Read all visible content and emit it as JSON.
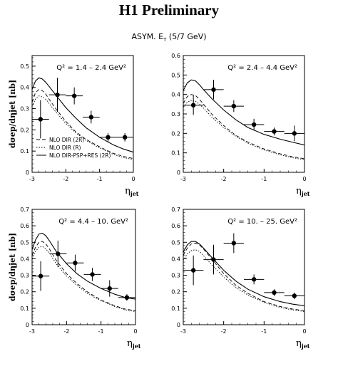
{
  "header": {
    "title": "H1 Preliminary",
    "subtitle_main": "ASYM. E",
    "subtitle_sub": "T",
    "subtitle_rest": " (5/7 GeV)"
  },
  "chart_data": [
    {
      "type": "scatter",
      "panel_label": "Q² = 1.4 – 2.4 GeV²",
      "ylabel": "dσep/dηjet [nb]",
      "xlabel": "ηjet",
      "xlim": [
        -3,
        0
      ],
      "ylim": [
        0,
        0.55
      ],
      "x_ticks": [
        -3,
        -2,
        -1,
        0
      ],
      "y_ticks": [
        0,
        0.1,
        0.2,
        0.3,
        0.4,
        0.5
      ],
      "points": [
        {
          "x": -2.75,
          "y": 0.25,
          "xerr": 0.25,
          "yerr": 0.09
        },
        {
          "x": -2.25,
          "y": 0.365,
          "xerr": 0.25,
          "yerr": 0.08
        },
        {
          "x": -1.75,
          "y": 0.36,
          "xerr": 0.25,
          "yerr": 0.04
        },
        {
          "x": -1.25,
          "y": 0.26,
          "xerr": 0.25,
          "yerr": 0.03
        },
        {
          "x": -0.75,
          "y": 0.165,
          "xerr": 0.25,
          "yerr": 0.02
        },
        {
          "x": -0.25,
          "y": 0.165,
          "xerr": 0.25,
          "yerr": 0.02
        }
      ],
      "series": [
        {
          "name": "NLO DIR (2R)",
          "style": "dashed",
          "x": [
            -3,
            -2.9,
            -2.8,
            -2.7,
            -2.6,
            -2.5,
            -2.3,
            -2.0,
            -1.7,
            -1.4,
            -1.0,
            -0.6,
            -0.3,
            0
          ],
          "y": [
            0.33,
            0.375,
            0.39,
            0.385,
            0.37,
            0.345,
            0.3,
            0.24,
            0.19,
            0.155,
            0.12,
            0.09,
            0.075,
            0.065
          ]
        },
        {
          "name": "NLO DIR (R)",
          "style": "dotted",
          "x": [
            -3,
            -2.9,
            -2.8,
            -2.7,
            -2.6,
            -2.5,
            -2.3,
            -2.0,
            -1.7,
            -1.4,
            -1.0,
            -0.6,
            -0.3,
            0
          ],
          "y": [
            0.31,
            0.345,
            0.36,
            0.355,
            0.345,
            0.325,
            0.285,
            0.23,
            0.185,
            0.15,
            0.115,
            0.085,
            0.07,
            0.06
          ]
        },
        {
          "name": "NLO DIR-PSP+RES (2R)",
          "style": "solid",
          "x": [
            -3,
            -2.9,
            -2.8,
            -2.7,
            -2.6,
            -2.5,
            -2.3,
            -2.0,
            -1.7,
            -1.4,
            -1.0,
            -0.6,
            -0.3,
            0
          ],
          "y": [
            0.39,
            0.43,
            0.445,
            0.44,
            0.425,
            0.405,
            0.365,
            0.305,
            0.255,
            0.21,
            0.165,
            0.13,
            0.11,
            0.095
          ]
        }
      ],
      "legend": "bottom-left"
    },
    {
      "type": "scatter",
      "panel_label": "Q² = 2.4 – 4.4 GeV²",
      "xlabel": "ηjet",
      "xlim": [
        -3,
        0
      ],
      "ylim": [
        0,
        0.6
      ],
      "x_ticks": [
        -3,
        -2,
        -1,
        0
      ],
      "y_ticks": [
        0,
        0.1,
        0.2,
        0.3,
        0.4,
        0.5,
        0.6
      ],
      "points": [
        {
          "x": -2.75,
          "y": 0.345,
          "xerr": 0.25,
          "yerr": 0.05
        },
        {
          "x": -2.25,
          "y": 0.425,
          "xerr": 0.25,
          "yerr": 0.05
        },
        {
          "x": -1.75,
          "y": 0.34,
          "xerr": 0.25,
          "yerr": 0.03
        },
        {
          "x": -1.25,
          "y": 0.245,
          "xerr": 0.25,
          "yerr": 0.03
        },
        {
          "x": -0.75,
          "y": 0.21,
          "xerr": 0.25,
          "yerr": 0.02
        },
        {
          "x": -0.25,
          "y": 0.2,
          "xerr": 0.25,
          "yerr": 0.04
        }
      ],
      "series": [
        {
          "name": "NLO DIR (2R)",
          "style": "dashed",
          "x": [
            -3,
            -2.9,
            -2.8,
            -2.7,
            -2.6,
            -2.5,
            -2.3,
            -2.0,
            -1.7,
            -1.4,
            -1.0,
            -0.6,
            -0.3,
            0
          ],
          "y": [
            0.355,
            0.39,
            0.4,
            0.395,
            0.375,
            0.35,
            0.3,
            0.24,
            0.19,
            0.155,
            0.12,
            0.095,
            0.08,
            0.07
          ]
        },
        {
          "name": "NLO DIR (R)",
          "style": "dotted",
          "x": [
            -3,
            -2.9,
            -2.8,
            -2.7,
            -2.6,
            -2.5,
            -2.3,
            -2.0,
            -1.7,
            -1.4,
            -1.0,
            -0.6,
            -0.3,
            0
          ],
          "y": [
            0.335,
            0.36,
            0.37,
            0.365,
            0.35,
            0.33,
            0.285,
            0.23,
            0.185,
            0.15,
            0.115,
            0.09,
            0.075,
            0.065
          ]
        },
        {
          "name": "NLO DIR-PSP+RES (2R)",
          "style": "solid",
          "x": [
            -3,
            -2.9,
            -2.8,
            -2.7,
            -2.6,
            -2.5,
            -2.3,
            -2.0,
            -1.7,
            -1.4,
            -1.0,
            -0.6,
            -0.3,
            0
          ],
          "y": [
            0.42,
            0.46,
            0.475,
            0.47,
            0.45,
            0.425,
            0.38,
            0.32,
            0.27,
            0.23,
            0.195,
            0.17,
            0.155,
            0.14
          ]
        }
      ]
    },
    {
      "type": "scatter",
      "panel_label": "Q² = 4.4 – 10. GeV²",
      "ylabel": "dσep/dηjet [nb]",
      "xlabel": "ηjet",
      "xlim": [
        -3,
        0
      ],
      "ylim": [
        0,
        0.7
      ],
      "x_ticks": [
        -3,
        -2,
        -1,
        0
      ],
      "y_ticks": [
        0,
        0.1,
        0.2,
        0.3,
        0.4,
        0.5,
        0.6,
        0.7
      ],
      "points": [
        {
          "x": -2.75,
          "y": 0.295,
          "xerr": 0.25,
          "yerr": 0.09
        },
        {
          "x": -2.25,
          "y": 0.43,
          "xerr": 0.25,
          "yerr": 0.08
        },
        {
          "x": -1.75,
          "y": 0.375,
          "xerr": 0.25,
          "yerr": 0.05
        },
        {
          "x": -1.25,
          "y": 0.305,
          "xerr": 0.25,
          "yerr": 0.04
        },
        {
          "x": -0.75,
          "y": 0.22,
          "xerr": 0.25,
          "yerr": 0.05
        },
        {
          "x": -0.25,
          "y": 0.165,
          "xerr": 0.25,
          "yerr": 0.02
        }
      ],
      "series": [
        {
          "name": "NLO DIR (2R)",
          "style": "dashed",
          "x": [
            -3,
            -2.9,
            -2.8,
            -2.7,
            -2.6,
            -2.5,
            -2.3,
            -2.0,
            -1.7,
            -1.4,
            -1.0,
            -0.6,
            -0.3,
            0
          ],
          "y": [
            0.42,
            0.47,
            0.5,
            0.505,
            0.49,
            0.46,
            0.39,
            0.31,
            0.25,
            0.2,
            0.15,
            0.115,
            0.095,
            0.085
          ]
        },
        {
          "name": "NLO DIR (R)",
          "style": "dotted",
          "x": [
            -3,
            -2.9,
            -2.8,
            -2.7,
            -2.6,
            -2.5,
            -2.3,
            -2.0,
            -1.7,
            -1.4,
            -1.0,
            -0.6,
            -0.3,
            0
          ],
          "y": [
            0.4,
            0.445,
            0.47,
            0.475,
            0.46,
            0.435,
            0.37,
            0.295,
            0.24,
            0.19,
            0.145,
            0.11,
            0.09,
            0.08
          ]
        },
        {
          "name": "NLO DIR-PSP+RES (2R)",
          "style": "solid",
          "x": [
            -3,
            -2.9,
            -2.8,
            -2.7,
            -2.6,
            -2.5,
            -2.3,
            -2.0,
            -1.7,
            -1.4,
            -1.0,
            -0.6,
            -0.3,
            0
          ],
          "y": [
            0.455,
            0.515,
            0.55,
            0.555,
            0.54,
            0.51,
            0.445,
            0.37,
            0.31,
            0.265,
            0.22,
            0.185,
            0.165,
            0.155
          ]
        }
      ]
    },
    {
      "type": "scatter",
      "panel_label": "Q² = 10. – 25. GeV²",
      "xlabel": "ηjet",
      "xlim": [
        -3,
        0
      ],
      "ylim": [
        0,
        0.7
      ],
      "x_ticks": [
        -3,
        -2,
        -1,
        0
      ],
      "y_ticks": [
        0,
        0.1,
        0.2,
        0.3,
        0.4,
        0.5,
        0.6,
        0.7
      ],
      "points": [
        {
          "x": -2.75,
          "y": 0.33,
          "xerr": 0.25,
          "yerr": 0.09
        },
        {
          "x": -2.25,
          "y": 0.395,
          "xerr": 0.25,
          "yerr": 0.09
        },
        {
          "x": -1.75,
          "y": 0.495,
          "xerr": 0.25,
          "yerr": 0.06
        },
        {
          "x": -1.25,
          "y": 0.275,
          "xerr": 0.25,
          "yerr": 0.03
        },
        {
          "x": -0.75,
          "y": 0.195,
          "xerr": 0.25,
          "yerr": 0.02
        },
        {
          "x": -0.25,
          "y": 0.175,
          "xerr": 0.25,
          "yerr": 0.02
        }
      ],
      "series": [
        {
          "name": "NLO DIR (2R)",
          "style": "dashed",
          "x": [
            -3,
            -2.9,
            -2.8,
            -2.7,
            -2.6,
            -2.5,
            -2.3,
            -2.0,
            -1.7,
            -1.4,
            -1.0,
            -0.6,
            -0.3,
            0
          ],
          "y": [
            0.42,
            0.465,
            0.49,
            0.495,
            0.485,
            0.46,
            0.4,
            0.31,
            0.24,
            0.19,
            0.14,
            0.11,
            0.095,
            0.085
          ]
        },
        {
          "name": "NLO DIR (R)",
          "style": "dotted",
          "x": [
            -3,
            -2.9,
            -2.8,
            -2.7,
            -2.6,
            -2.5,
            -2.3,
            -2.0,
            -1.7,
            -1.4,
            -1.0,
            -0.6,
            -0.3,
            0
          ],
          "y": [
            0.39,
            0.43,
            0.45,
            0.455,
            0.445,
            0.42,
            0.365,
            0.29,
            0.225,
            0.18,
            0.135,
            0.105,
            0.09,
            0.08
          ]
        },
        {
          "name": "NLO DIR-PSP+RES (2R)",
          "style": "solid",
          "x": [
            -3,
            -2.9,
            -2.8,
            -2.7,
            -2.6,
            -2.5,
            -2.3,
            -2.0,
            -1.7,
            -1.4,
            -1.0,
            -0.6,
            -0.3,
            0
          ],
          "y": [
            0.44,
            0.485,
            0.505,
            0.505,
            0.49,
            0.465,
            0.41,
            0.33,
            0.265,
            0.215,
            0.17,
            0.14,
            0.125,
            0.115
          ]
        }
      ]
    }
  ],
  "legend_entries": [
    "NLO DIR (2R)",
    "NLO DIR (R)",
    "NLO DIR-PSP+RES (2R)"
  ],
  "colors": {
    "ink": "#000000",
    "background": "#ffffff"
  }
}
